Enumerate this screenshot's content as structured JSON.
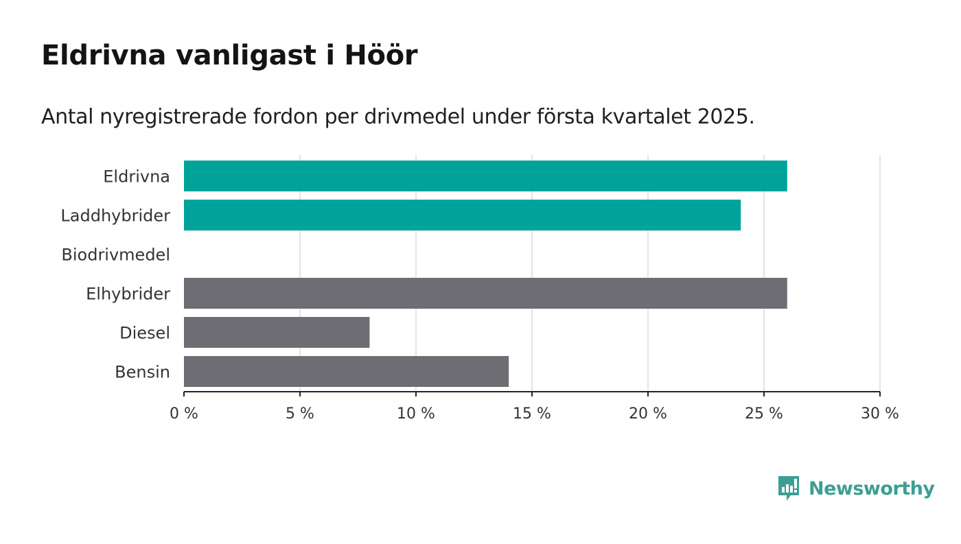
{
  "title": "Eldrivna vanligast i Höör",
  "subtitle": "Antal nyregistrerade fordon per drivmedel under första kvartalet 2025.",
  "brand": "Newsworthy",
  "colors": {
    "highlight": "#00a39a",
    "default": "#6e6d74",
    "brand": "#3d9e94"
  },
  "chart_data": {
    "type": "bar",
    "orientation": "horizontal",
    "categories": [
      "Eldrivna",
      "Laddhybrider",
      "Biodrivmedel",
      "Elhybrider",
      "Diesel",
      "Bensin"
    ],
    "values": [
      26,
      24,
      0,
      26,
      8,
      14
    ],
    "highlight": [
      true,
      true,
      false,
      false,
      false,
      false
    ],
    "xlim": [
      0,
      30
    ],
    "xticks": [
      0,
      5,
      10,
      15,
      20,
      25,
      30
    ],
    "xtick_labels": [
      "0 %",
      "5 %",
      "10 %",
      "15 %",
      "20 %",
      "25 %",
      "30 %"
    ],
    "grid": true
  }
}
